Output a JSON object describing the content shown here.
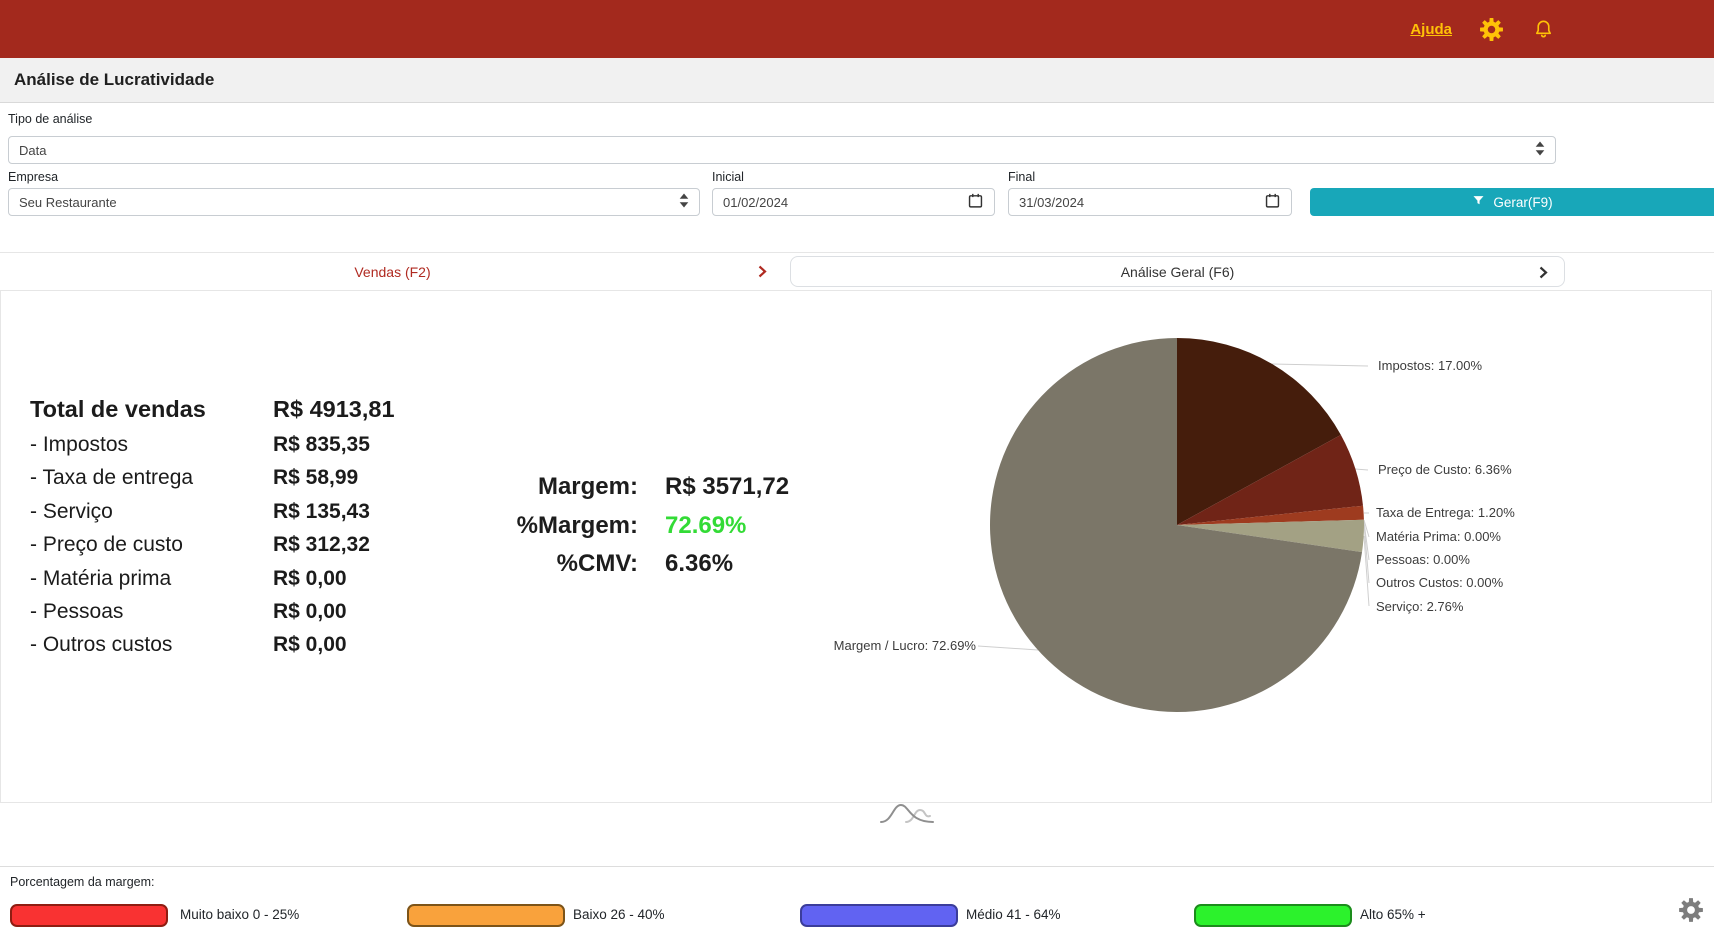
{
  "colors": {
    "topbar": "#A3291D",
    "accent_gold": "#FFC107",
    "button_teal": "#18A7B9",
    "tab_active_red": "#B02A21",
    "positive_green": "#33DB36"
  },
  "header": {
    "help_label": "Ajuda"
  },
  "page": {
    "title": "Análise de Lucratividade"
  },
  "filters": {
    "tipo_label": "Tipo de análise",
    "tipo_value": "Data",
    "empresa_label": "Empresa",
    "empresa_value": "Seu Restaurante",
    "inicial_label": "Inicial",
    "inicial_value": "01/02/2024",
    "final_label": "Final",
    "final_value": "31/03/2024",
    "generate_label": "Gerar(F9)"
  },
  "tabs": {
    "vendas_label": "Vendas (F2)",
    "analise_geral_label": "Análise Geral (F6)"
  },
  "summary": {
    "rows": [
      {
        "label": "Total de vendas",
        "value": "R$ 4913,81",
        "total": true
      },
      {
        "label": "- Impostos",
        "value": "R$ 835,35"
      },
      {
        "label": "- Taxa de entrega",
        "value": "R$ 58,99"
      },
      {
        "label": "- Serviço",
        "value": "R$ 135,43"
      },
      {
        "label": "- Preço de custo",
        "value": "R$ 312,32"
      },
      {
        "label": "- Matéria prima",
        "value": "R$ 0,00"
      },
      {
        "label": "- Pessoas",
        "value": "R$ 0,00"
      },
      {
        "label": "- Outros custos",
        "value": "R$ 0,00"
      }
    ]
  },
  "metrics": {
    "rows": [
      {
        "label": "Margem:",
        "value": "R$ 3571,72"
      },
      {
        "label": "%Margem:",
        "value": "72.69%",
        "value_color": "#33DB36"
      },
      {
        "label": "%CMV:",
        "value": "6.36%"
      }
    ]
  },
  "chart_data": {
    "type": "pie",
    "unit": "%",
    "direction": "clockwise",
    "start_angle_deg": 0,
    "slices": [
      {
        "name": "Impostos",
        "value": 17.0,
        "display": "Impostos: 17.00%",
        "color": "#451D0C"
      },
      {
        "name": "Preço de Custo",
        "value": 6.36,
        "display": "Preço de Custo: 6.36%",
        "color": "#702417"
      },
      {
        "name": "Taxa de Entrega",
        "value": 1.2,
        "display": "Taxa de Entrega: 1.20%",
        "color": "#9E3B1F"
      },
      {
        "name": "Matéria Prima",
        "value": 0.0,
        "display": "Matéria Prima: 0.00%"
      },
      {
        "name": "Pessoas",
        "value": 0.0,
        "display": "Pessoas: 0.00%"
      },
      {
        "name": "Outros Custos",
        "value": 0.0,
        "display": "Outros Custos: 0.00%"
      },
      {
        "name": "Serviço",
        "value": 2.76,
        "display": "Serviço: 2.76%",
        "color": "#A3A184"
      },
      {
        "name": "Margem / Lucro",
        "value": 72.69,
        "display": "Margem / Lucro: 72.69%",
        "color": "#7B7668"
      }
    ]
  },
  "legend": {
    "title": "Porcentagem da margem:",
    "items": [
      {
        "label": "Muito baixo 0 - 25%",
        "fill": "#F93232",
        "border": "#8F1D12"
      },
      {
        "label": "Baixo 26 - 40%",
        "fill": "#F9A23C",
        "border": "#7D5418"
      },
      {
        "label": "Médio 41 - 64%",
        "fill": "#6163F2",
        "border": "#3B3D9B"
      },
      {
        "label": "Alto 65% +",
        "fill": "#2CF22C",
        "border": "#1C8C1C"
      }
    ]
  }
}
